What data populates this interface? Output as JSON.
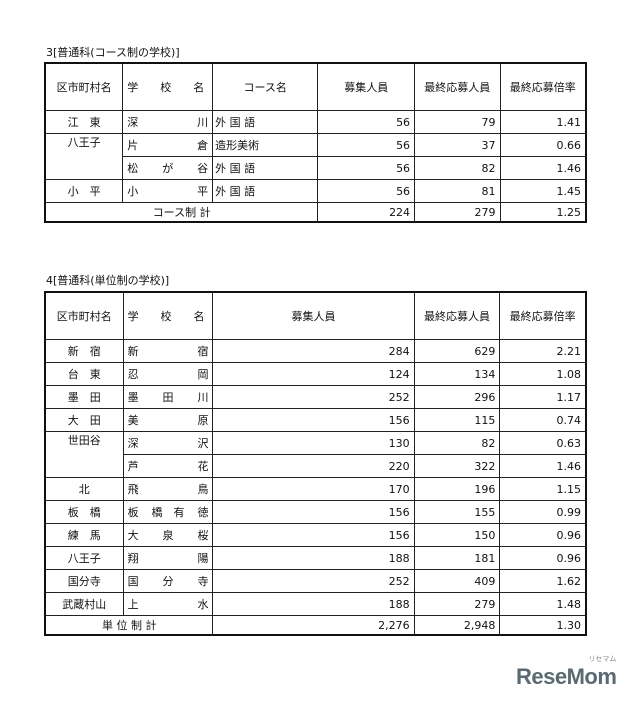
{
  "table3": {
    "title": "3[普通科(コース制の学校)]",
    "headers": [
      "区市町村名",
      "学　　校　　名",
      "コース名",
      "募集人員",
      "最終応募人員",
      "最終応募倍率"
    ],
    "rows": [
      {
        "district": "江　東",
        "school": [
          "深",
          "",
          "川"
        ],
        "course": "外 国 語",
        "quota": "56",
        "applicants": "79",
        "ratio": "1.41"
      },
      {
        "district": "八王子",
        "school": [
          "片",
          "",
          "倉"
        ],
        "course": "造形美術",
        "quota": "56",
        "applicants": "37",
        "ratio": "0.66"
      },
      {
        "district": "",
        "school": [
          "松",
          "が",
          "谷"
        ],
        "course": "外 国 語",
        "quota": "56",
        "applicants": "82",
        "ratio": "1.46"
      },
      {
        "district": "小　平",
        "school": [
          "小",
          "",
          "平"
        ],
        "course": "外 国 語",
        "quota": "56",
        "applicants": "81",
        "ratio": "1.45"
      }
    ],
    "total": {
      "label": "コース制 計",
      "quota": "224",
      "applicants": "279",
      "ratio": "1.25"
    }
  },
  "table4": {
    "title": "4[普通科(単位制の学校)]",
    "headers": [
      "区市町村名",
      "学　　校　　名",
      "募集人員",
      "最終応募人員",
      "最終応募倍率"
    ],
    "rows": [
      {
        "district": "新　宿",
        "school": [
          "新",
          "",
          "宿"
        ],
        "quota": "284",
        "applicants": "629",
        "ratio": "2.21"
      },
      {
        "district": "台　東",
        "school": [
          "忍",
          "",
          "岡"
        ],
        "quota": "124",
        "applicants": "134",
        "ratio": "1.08"
      },
      {
        "district": "墨　田",
        "school": [
          "墨",
          "田",
          "川"
        ],
        "quota": "252",
        "applicants": "296",
        "ratio": "1.17"
      },
      {
        "district": "大　田",
        "school": [
          "美",
          "",
          "原"
        ],
        "quota": "156",
        "applicants": "115",
        "ratio": "0.74"
      },
      {
        "district": "世田谷",
        "school": [
          "深",
          "",
          "沢"
        ],
        "quota": "130",
        "applicants": "82",
        "ratio": "0.63"
      },
      {
        "district": "",
        "school": [
          "芦",
          "",
          "花"
        ],
        "quota": "220",
        "applicants": "322",
        "ratio": "1.46"
      },
      {
        "district": "北",
        "school": [
          "飛",
          "",
          "鳥"
        ],
        "quota": "170",
        "applicants": "196",
        "ratio": "1.15"
      },
      {
        "district": "板　橋",
        "school": [
          "板",
          "橋　有",
          "徳"
        ],
        "quota": "156",
        "applicants": "155",
        "ratio": "0.99"
      },
      {
        "district": "練　馬",
        "school": [
          "大",
          "泉",
          "桜"
        ],
        "quota": "156",
        "applicants": "150",
        "ratio": "0.96"
      },
      {
        "district": "八王子",
        "school": [
          "翔",
          "",
          "陽"
        ],
        "quota": "188",
        "applicants": "181",
        "ratio": "0.96"
      },
      {
        "district": "国分寺",
        "school": [
          "国",
          "分",
          "寺"
        ],
        "quota": "252",
        "applicants": "409",
        "ratio": "1.62"
      },
      {
        "district": "武蔵村山",
        "school": [
          "上",
          "",
          "水"
        ],
        "quota": "188",
        "applicants": "279",
        "ratio": "1.48"
      }
    ],
    "total": {
      "label": "単 位 制 計",
      "quota": "2,276",
      "applicants": "2,948",
      "ratio": "1.30"
    }
  },
  "logo": {
    "text": "ReseMom",
    "kana": "リセマム"
  }
}
